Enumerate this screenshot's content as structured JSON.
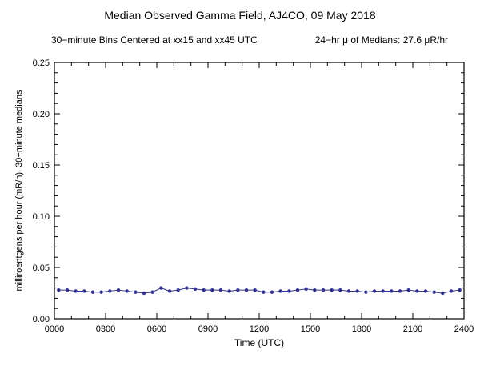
{
  "title": "Median Observed Gamma Field, AJ4CO, 09 May 2018",
  "subtitle_left": "30−minute Bins Centered at xx15 and xx45 UTC",
  "subtitle_right": "24−hr μ of Medians: 27.6 μR/hr",
  "chart_data": {
    "type": "line",
    "title": "Median Observed Gamma Field, AJ4CO, 09 May 2018",
    "xlabel": "Time (UTC)",
    "ylabel": "milliroentgens per hour (mR/h), 30−minute medians",
    "xlim": [
      0,
      24
    ],
    "ylim": [
      0,
      0.25
    ],
    "grid": false,
    "frame": true,
    "xticks": {
      "values": [
        0,
        3,
        6,
        9,
        12,
        15,
        18,
        21,
        24
      ],
      "labels": [
        "0000",
        "0300",
        "0600",
        "0900",
        "1200",
        "1500",
        "1800",
        "2100",
        "2400"
      ],
      "minor_step": 1
    },
    "yticks": {
      "values": [
        0,
        0.05,
        0.1,
        0.15,
        0.2,
        0.25
      ],
      "labels": [
        "0.00",
        "0.05",
        "0.10",
        "0.15",
        "0.20",
        "0.25"
      ],
      "minor_step": 0.01
    },
    "series": [
      {
        "name": "30-minute medians",
        "color": "#32328c",
        "marker": "circle",
        "x": [
          0.25,
          0.75,
          1.25,
          1.75,
          2.25,
          2.75,
          3.25,
          3.75,
          4.25,
          4.75,
          5.25,
          5.75,
          6.25,
          6.75,
          7.25,
          7.75,
          8.25,
          8.75,
          9.25,
          9.75,
          10.25,
          10.75,
          11.25,
          11.75,
          12.25,
          12.75,
          13.25,
          13.75,
          14.25,
          14.75,
          15.25,
          15.75,
          16.25,
          16.75,
          17.25,
          17.75,
          18.25,
          18.75,
          19.25,
          19.75,
          20.25,
          20.75,
          21.25,
          21.75,
          22.25,
          22.75,
          23.25,
          23.75
        ],
        "values": [
          0.028,
          0.028,
          0.027,
          0.027,
          0.026,
          0.026,
          0.027,
          0.028,
          0.027,
          0.026,
          0.025,
          0.026,
          0.03,
          0.027,
          0.028,
          0.03,
          0.029,
          0.028,
          0.028,
          0.028,
          0.027,
          0.028,
          0.028,
          0.028,
          0.026,
          0.026,
          0.027,
          0.027,
          0.028,
          0.029,
          0.028,
          0.028,
          0.028,
          0.028,
          0.027,
          0.027,
          0.026,
          0.027,
          0.027,
          0.027,
          0.027,
          0.028,
          0.027,
          0.027,
          0.026,
          0.025,
          0.027,
          0.028
        ]
      }
    ],
    "summary_mean_uR_per_hr": 27.6
  }
}
